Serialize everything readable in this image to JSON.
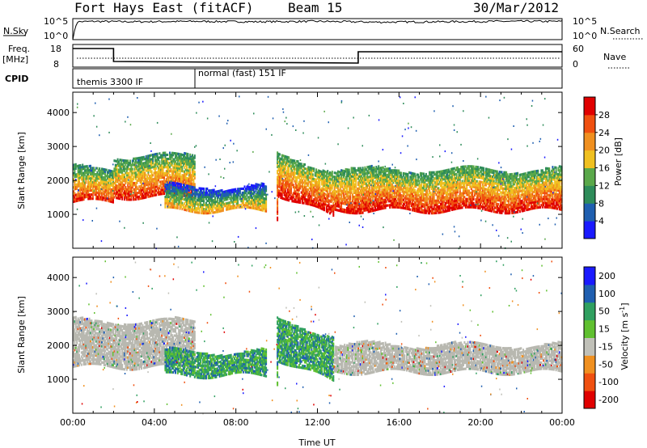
{
  "header": {
    "station": "Fort Hays East (fitACF)",
    "beam": "Beam 15",
    "date": "30/Mar/2012"
  },
  "panels": {
    "nsky": {
      "label": "N.Sky",
      "tick_top": "10^5",
      "tick_bottom": "10^0"
    },
    "nsearch": {
      "label": "N.Search",
      "tick_top": "10^5",
      "tick_bottom": "10^0"
    },
    "freq": {
      "label": "Freq.",
      "unit": "[MHz]",
      "tick_top": "18",
      "tick_bottom": "8"
    },
    "nave": {
      "label": "Nave",
      "tick_top": "60",
      "tick_bottom": "0"
    },
    "cpid": {
      "label": "CPID",
      "modes": [
        {
          "name": "themis 3300 IF",
          "start_hour": 0,
          "end_hour": 6
        },
        {
          "name": "normal (fast) 151 IF",
          "start_hour": 6,
          "end_hour": 24
        }
      ]
    }
  },
  "chart_data": [
    {
      "type": "line",
      "name": "sky-noise",
      "x": [
        0,
        0.2,
        1,
        3,
        6,
        9,
        12,
        15,
        18,
        21,
        24
      ],
      "y_log10": [
        0,
        4.4,
        4.5,
        4.4,
        4.5,
        4.4,
        4.5,
        4.3,
        4.4,
        4.5,
        4.5
      ],
      "xlim": [
        0,
        24
      ],
      "ylim_log10": [
        0,
        5
      ]
    },
    {
      "type": "line",
      "name": "frequency",
      "x": [
        0,
        2,
        2,
        14,
        14,
        24
      ],
      "y": [
        16.2,
        16.2,
        10.5,
        9.8,
        14.8,
        14.8
      ],
      "ylabel": "Freq. [MHz]",
      "ylim": [
        8,
        18
      ],
      "xlim": [
        0,
        24
      ]
    },
    {
      "type": "heatmap",
      "name": "power",
      "ylabel": "Slant Range [km]",
      "xlim": [
        0,
        24
      ],
      "ylim": [
        0,
        4600
      ],
      "yticks": [
        1000,
        2000,
        3000,
        4000
      ],
      "colorbar": {
        "label": "Power [dB]",
        "ticks": [
          4,
          8,
          12,
          16,
          20,
          24,
          28
        ],
        "range": [
          0,
          32
        ]
      },
      "echo_regions": [
        {
          "t0": 0.0,
          "t1": 2.0,
          "r_lo": 1350,
          "r_hi": 2350,
          "power": 19
        },
        {
          "t0": 2.0,
          "t1": 6.0,
          "r_lo": 1500,
          "r_hi": 2700,
          "power": 20
        },
        {
          "t0": 4.5,
          "t1": 9.5,
          "r_lo": 1100,
          "r_hi": 1800,
          "power": 11
        },
        {
          "t0": 10.0,
          "t1": 12.8,
          "r_lo": 900,
          "r_hi": 2700,
          "power": 22
        },
        {
          "t0": 12.8,
          "t1": 24.0,
          "r_lo": 1100,
          "r_hi": 2300,
          "power": 21
        }
      ]
    },
    {
      "type": "heatmap",
      "name": "velocity",
      "ylabel": "Slant Range [km]",
      "xlabel": "Time UT",
      "xlim": [
        0,
        24
      ],
      "ylim": [
        0,
        4600
      ],
      "xticks": [
        "00:00",
        "04:00",
        "08:00",
        "12:00",
        "16:00",
        "20:00",
        "00:00"
      ],
      "yticks": [
        1000,
        2000,
        3000,
        4000
      ],
      "colorbar": {
        "label": "Velocity [m s^-1]",
        "ticks": [
          200,
          100,
          50,
          15,
          -15,
          -50,
          -100,
          -200
        ]
      },
      "echo_regions": [
        {
          "t0": 0.0,
          "t1": 6.0,
          "r_lo": 1350,
          "r_hi": 2700,
          "velocity": 0
        },
        {
          "t0": 4.5,
          "t1": 9.5,
          "r_lo": 1100,
          "r_hi": 1800,
          "velocity": 70
        },
        {
          "t0": 10.0,
          "t1": 12.8,
          "r_lo": 900,
          "r_hi": 2700,
          "velocity": 40
        },
        {
          "t0": 12.8,
          "t1": 24.0,
          "r_lo": 1200,
          "r_hi": 2000,
          "velocity": 0
        }
      ]
    }
  ],
  "colors": {
    "power_scale": [
      "#1a1aff",
      "#1f5fb0",
      "#2e8c5a",
      "#5aa84a",
      "#f0c020",
      "#f09020",
      "#f05010",
      "#e00000"
    ],
    "velocity_scale": [
      "#e00000",
      "#f05010",
      "#f09020",
      "#c0c0b8",
      "#60c030",
      "#30a060",
      "#1f5fb0",
      "#1a1aff"
    ],
    "ground_scatter": "#b8b8b0"
  }
}
